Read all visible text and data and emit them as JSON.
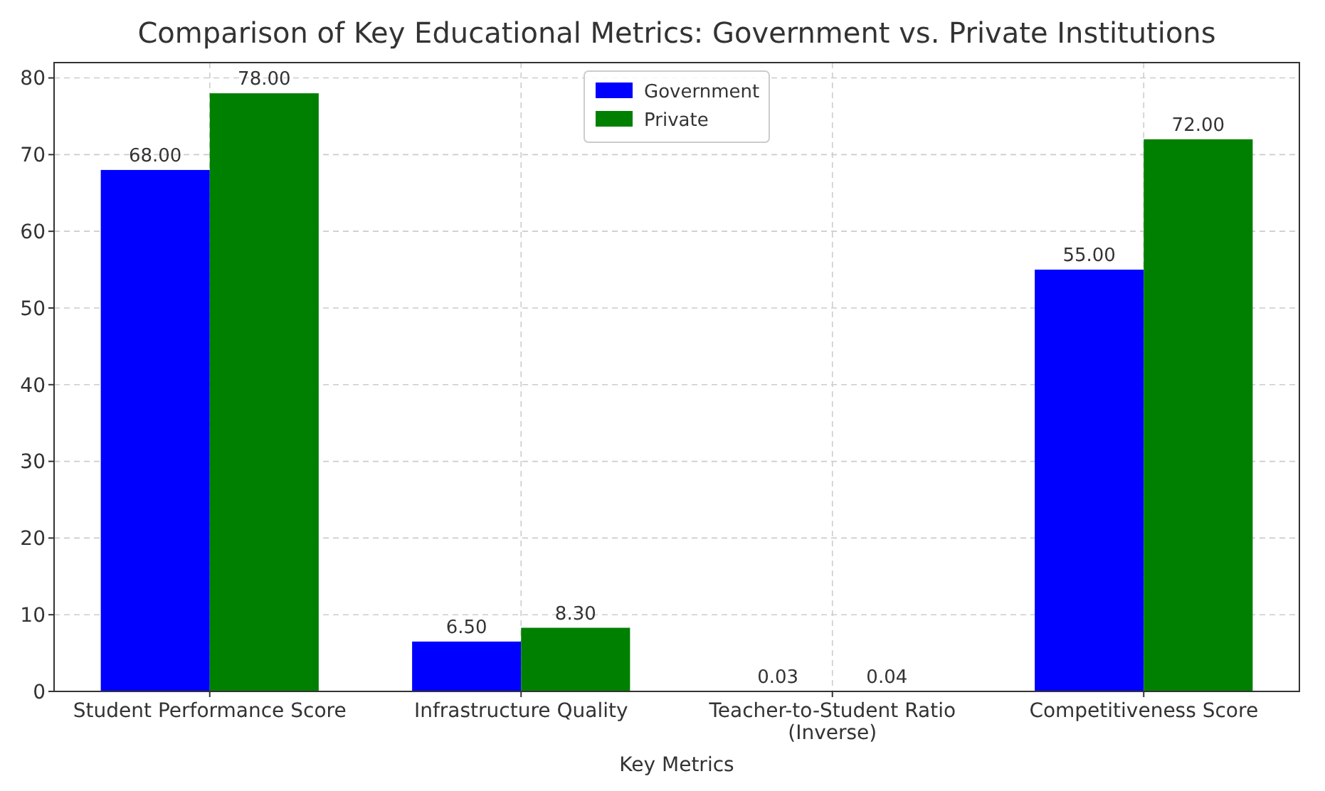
{
  "chart_data": {
    "type": "bar",
    "title": "Comparison of Key Educational Metrics: Government vs. Private Institutions",
    "xlabel": "Key Metrics",
    "categories": [
      "Student Performance Score",
      "Infrastructure Quality",
      "Teacher-to-Student Ratio (Inverse)",
      "Competitiveness Score"
    ],
    "series": [
      {
        "name": "Government",
        "color": "#0000ff",
        "values": [
          68,
          6.5,
          0.03,
          55
        ],
        "value_labels": [
          "68.00",
          "6.50",
          "0.03",
          "55.00"
        ]
      },
      {
        "name": "Private",
        "color": "#008000",
        "values": [
          78,
          8.3,
          0.04,
          72
        ],
        "value_labels": [
          "78.00",
          "8.30",
          "0.04",
          "72.00"
        ]
      }
    ],
    "ylim": [
      0,
      82
    ],
    "yticks": [
      0,
      10,
      20,
      30,
      40,
      50,
      60,
      70,
      80
    ],
    "grid": true,
    "legend": "top"
  }
}
